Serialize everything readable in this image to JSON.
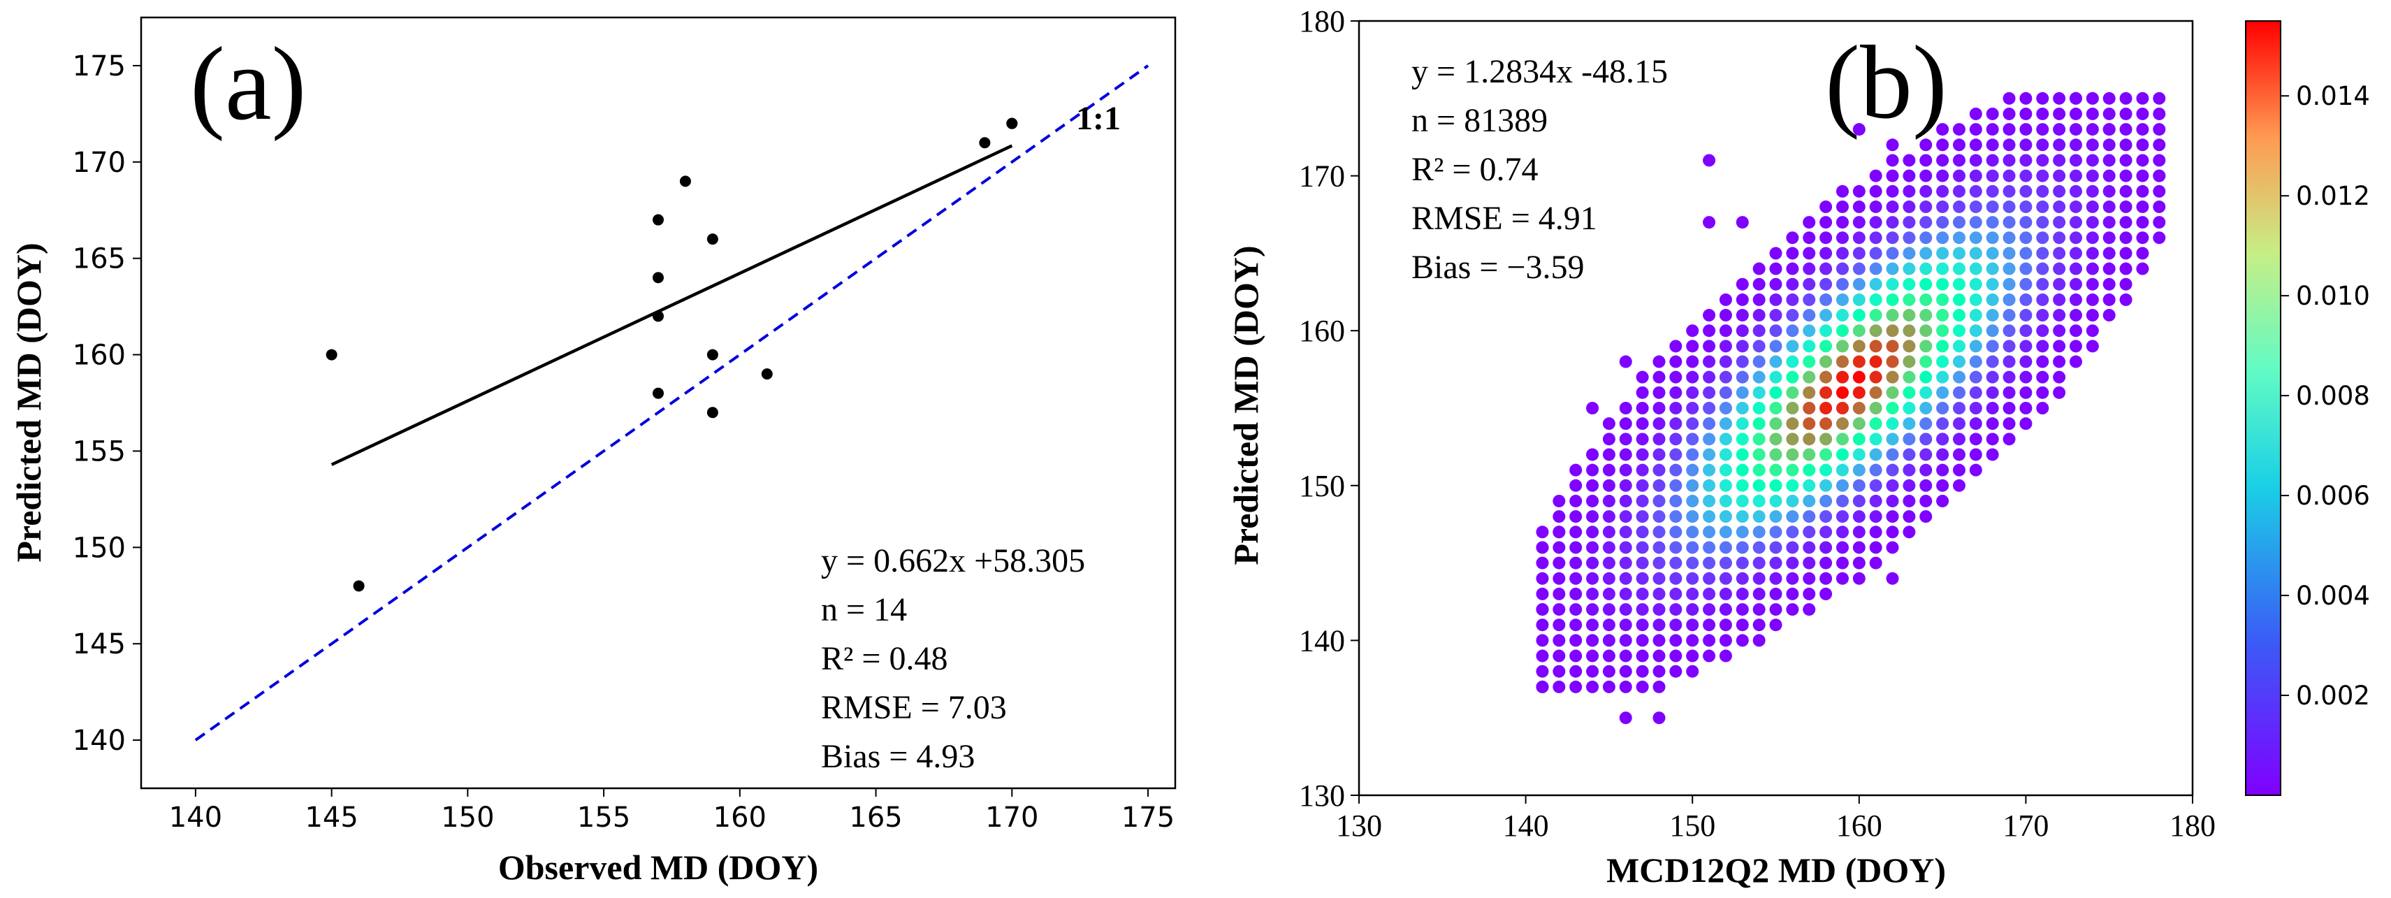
{
  "figure": {
    "panel_a_label": "(a)",
    "panel_b_label": "(b)"
  },
  "chart_data": [
    {
      "type": "scatter",
      "panel": "(a)",
      "title": "",
      "xlabel": "Observed MD (DOY)",
      "ylabel": "Predicted MD (DOY)",
      "xlim": [
        138,
        176
      ],
      "ylim": [
        137.5,
        177.5
      ],
      "xticks": [
        140,
        145,
        150,
        155,
        160,
        165,
        170,
        175
      ],
      "yticks": [
        140,
        145,
        150,
        155,
        160,
        165,
        170,
        175
      ],
      "points": [
        {
          "x": 145,
          "y": 160
        },
        {
          "x": 146,
          "y": 148
        },
        {
          "x": 157,
          "y": 167
        },
        {
          "x": 157,
          "y": 164
        },
        {
          "x": 157,
          "y": 162
        },
        {
          "x": 157,
          "y": 158
        },
        {
          "x": 158,
          "y": 169
        },
        {
          "x": 159,
          "y": 166
        },
        {
          "x": 159,
          "y": 160
        },
        {
          "x": 159,
          "y": 157
        },
        {
          "x": 161,
          "y": 159
        },
        {
          "x": 169,
          "y": 171
        },
        {
          "x": 170,
          "y": 172
        },
        {
          "x": 170,
          "y": 172
        }
      ],
      "fit_line": {
        "x": [
          145,
          170
        ],
        "slope": 0.662,
        "intercept": 58.305,
        "color": "#000000"
      },
      "one_to_one_line": {
        "x": [
          140,
          175
        ],
        "label": "1:1",
        "color": "#0000dd"
      },
      "stats": {
        "equation": "y = 0.662x +58.305",
        "n": "n = 14",
        "r2": "R² = 0.48",
        "rmse": "RMSE = 7.03",
        "bias": "Bias = 4.93"
      },
      "grid": false
    },
    {
      "type": "heatmap",
      "panel": "(b)",
      "title": "",
      "xlabel": "MCD12Q2 MD (DOY)",
      "ylabel": "Predicted MD (DOY)",
      "xlim": [
        130,
        180
      ],
      "ylim": [
        130,
        180
      ],
      "xticks": [
        130,
        140,
        150,
        160,
        170,
        180
      ],
      "yticks": [
        130,
        140,
        150,
        160,
        170,
        180
      ],
      "density_model": {
        "description": "Point density scatter; density approx. Gaussian around the regression line",
        "center_x": 159.5,
        "center_y": 156.5,
        "peak_density": 0.0155,
        "cell_step_x": 1,
        "cell_step_y": 1
      },
      "regression": {
        "slope": 1.2834,
        "intercept": -48.15
      },
      "outliers": [
        {
          "x": 141,
          "y": 137
        },
        {
          "x": 141,
          "y": 142
        },
        {
          "x": 141,
          "y": 146
        },
        {
          "x": 142,
          "y": 147
        },
        {
          "x": 144,
          "y": 155
        },
        {
          "x": 146,
          "y": 158
        },
        {
          "x": 151,
          "y": 171
        },
        {
          "x": 151,
          "y": 167
        },
        {
          "x": 153,
          "y": 167
        },
        {
          "x": 160,
          "y": 173
        },
        {
          "x": 162,
          "y": 172
        },
        {
          "x": 162,
          "y": 144
        },
        {
          "x": 165,
          "y": 153
        },
        {
          "x": 173,
          "y": 175
        },
        {
          "x": 174,
          "y": 175
        },
        {
          "x": 175,
          "y": 173
        },
        {
          "x": 178,
          "y": 170
        },
        {
          "x": 144,
          "y": 140
        },
        {
          "x": 146,
          "y": 135
        },
        {
          "x": 148,
          "y": 135
        }
      ],
      "stats": {
        "equation": "y = 1.2834x -48.15",
        "n": "n = 81389",
        "r2": "R² = 0.74",
        "rmse": "RMSE = 4.91",
        "bias": "Bias = −3.59"
      },
      "colorbar": {
        "colormap": "rainbow",
        "min": 0,
        "max": 0.0155,
        "ticks": [
          0.002,
          0.004,
          0.006,
          0.008,
          0.01,
          0.012,
          0.014
        ],
        "tick_labels": [
          "0.002",
          "0.004",
          "0.006",
          "0.008",
          "0.010",
          "0.012",
          "0.014"
        ]
      },
      "grid": false
    }
  ]
}
